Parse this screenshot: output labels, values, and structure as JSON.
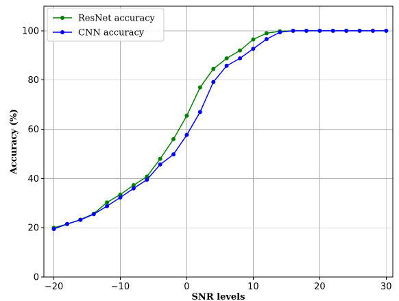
{
  "chart_data": {
    "type": "line",
    "title": "",
    "xlabel": "SNR levels",
    "ylabel": "Accuracy (%)",
    "xlim": [
      -21.5,
      31
    ],
    "ylim": [
      0,
      110
    ],
    "x_ticks": [
      -20,
      -10,
      0,
      10,
      20,
      30
    ],
    "y_ticks": [
      0,
      20,
      40,
      60,
      80,
      100
    ],
    "x_tick_labels": [
      "−20",
      "−10",
      "0",
      "10",
      "20",
      "30"
    ],
    "y_tick_labels": [
      "0",
      "20",
      "40",
      "60",
      "80",
      "100"
    ],
    "grid": true,
    "legend_position": "top-left",
    "x": [
      -20,
      -18,
      -16,
      -14,
      -12,
      -10,
      -8,
      -6,
      -4,
      -2,
      0,
      2,
      4,
      6,
      8,
      10,
      12,
      14,
      16,
      18,
      20,
      22,
      24,
      26,
      28,
      30
    ],
    "series": [
      {
        "name": "ResNet accuracy",
        "color": "#008000",
        "values": [
          20,
          21.5,
          23.3,
          25.7,
          30.3,
          33.5,
          37.3,
          40.8,
          48,
          56,
          65.5,
          77,
          84.5,
          88.8,
          92,
          96.5,
          99,
          99.8,
          100,
          100,
          100,
          100,
          100,
          100,
          100,
          100
        ]
      },
      {
        "name": "CNN accuracy",
        "color": "#0000ff",
        "values": [
          19.5,
          21.5,
          23.2,
          25.5,
          28.8,
          32.3,
          36,
          39.5,
          45.7,
          49.8,
          57.7,
          67,
          79.2,
          85.8,
          88.8,
          92.7,
          96.6,
          99.4,
          100,
          100,
          100,
          100,
          100,
          100,
          100,
          100
        ]
      }
    ]
  }
}
